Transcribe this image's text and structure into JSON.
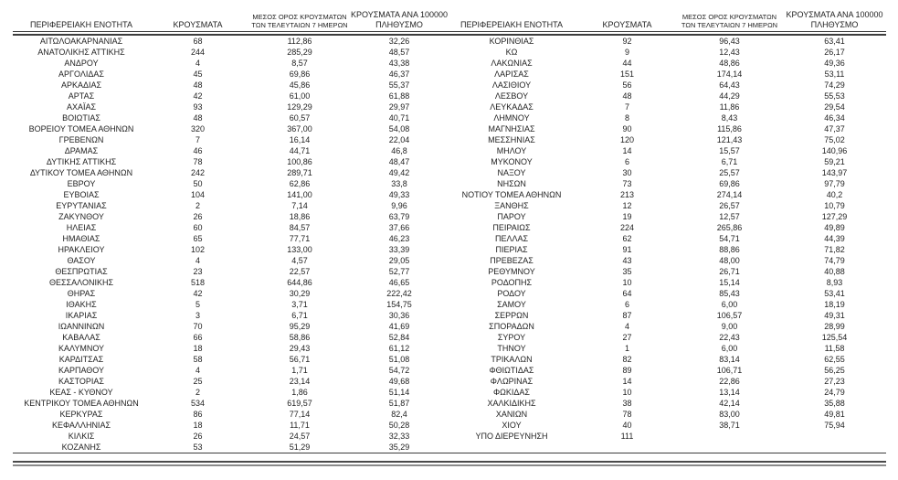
{
  "page": {
    "background_color": "#ffffff",
    "text_color": "#1f1f1f",
    "rule_color": "#3d3d3d"
  },
  "table": {
    "left": {
      "headers": {
        "region": "ΠΕΡΙΦΕΡΕΙΑΚΗ ΕΝΟΤΗΤΑ",
        "cases": "ΚΡΟΥΣΜΑΤΑ",
        "avg7_line1": "ΜΕΣΟΣ ΟΡΟΣ ΚΡΟΥΣΜΑΤΩΝ",
        "avg7_line2": "ΤΩΝ ΤΕΛΕΥΤΑΙΩΝ 7 ΗΜΕΡΩΝ",
        "per100k_line1": "ΚΡΟΥΣΜΑΤΑ ΑΝΑ 100000",
        "per100k_line2": "ΠΛΗΘΥΣΜΟ"
      },
      "rows": [
        [
          "ΑΙΤΩΛΟΑΚΑΡΝΑΝΙΑΣ",
          "68",
          "112,86",
          "32,26"
        ],
        [
          "ΑΝΑΤΟΛΙΚΗΣ ΑΤΤΙΚΗΣ",
          "244",
          "285,29",
          "48,57"
        ],
        [
          "ΑΝΔΡΟΥ",
          "4",
          "8,57",
          "43,38"
        ],
        [
          "ΑΡΓΟΛΙΔΑΣ",
          "45",
          "69,86",
          "46,37"
        ],
        [
          "ΑΡΚΑΔΙΑΣ",
          "48",
          "45,86",
          "55,37"
        ],
        [
          "ΑΡΤΑΣ",
          "42",
          "61,00",
          "61,88"
        ],
        [
          "ΑΧΑΪΑΣ",
          "93",
          "129,29",
          "29,97"
        ],
        [
          "ΒΟΙΩΤΙΑΣ",
          "48",
          "60,57",
          "40,71"
        ],
        [
          "ΒΟΡΕΙΟΥ ΤΟΜΕΑ ΑΘΗΝΩΝ",
          "320",
          "367,00",
          "54,08"
        ],
        [
          "ΓΡΕΒΕΝΩΝ",
          "7",
          "16,14",
          "22,04"
        ],
        [
          "ΔΡΑΜΑΣ",
          "46",
          "44,71",
          "46,8"
        ],
        [
          "ΔΥΤΙΚΗΣ ΑΤΤΙΚΗΣ",
          "78",
          "100,86",
          "48,47"
        ],
        [
          "ΔΥΤΙΚΟΥ ΤΟΜΕΑ ΑΘΗΝΩΝ",
          "242",
          "289,71",
          "49,42"
        ],
        [
          "ΕΒΡΟΥ",
          "50",
          "62,86",
          "33,8"
        ],
        [
          "ΕΥΒΟΙΑΣ",
          "104",
          "141,00",
          "49,33"
        ],
        [
          "ΕΥΡΥΤΑΝΙΑΣ",
          "2",
          "7,14",
          "9,96"
        ],
        [
          "ΖΑΚΥΝΘΟΥ",
          "26",
          "18,86",
          "63,79"
        ],
        [
          "ΗΛΕΙΑΣ",
          "60",
          "84,57",
          "37,66"
        ],
        [
          "ΗΜΑΘΙΑΣ",
          "65",
          "77,71",
          "46,23"
        ],
        [
          "ΗΡΑΚΛΕΙΟΥ",
          "102",
          "133,00",
          "33,39"
        ],
        [
          "ΘΑΣΟΥ",
          "4",
          "4,57",
          "29,05"
        ],
        [
          "ΘΕΣΠΡΩΤΙΑΣ",
          "23",
          "22,57",
          "52,77"
        ],
        [
          "ΘΕΣΣΑΛΟΝΙΚΗΣ",
          "518",
          "644,86",
          "46,65"
        ],
        [
          "ΘΗΡΑΣ",
          "42",
          "30,29",
          "222,42"
        ],
        [
          "ΙΘΑΚΗΣ",
          "5",
          "3,71",
          "154,75"
        ],
        [
          "ΙΚΑΡΙΑΣ",
          "3",
          "6,71",
          "30,36"
        ],
        [
          "ΙΩΑΝΝΙΝΩΝ",
          "70",
          "95,29",
          "41,69"
        ],
        [
          "ΚΑΒΑΛΑΣ",
          "66",
          "58,86",
          "52,84"
        ],
        [
          "ΚΑΛΥΜΝΟΥ",
          "18",
          "29,43",
          "61,12"
        ],
        [
          "ΚΑΡΔΙΤΣΑΣ",
          "58",
          "56,71",
          "51,08"
        ],
        [
          "ΚΑΡΠΑΘΟΥ",
          "4",
          "1,71",
          "54,72"
        ],
        [
          "ΚΑΣΤΟΡΙΑΣ",
          "25",
          "23,14",
          "49,68"
        ],
        [
          "ΚΕΑΣ - ΚΥΘΝΟΥ",
          "2",
          "1,86",
          "51,14"
        ],
        [
          "ΚΕΝΤΡΙΚΟΥ ΤΟΜΕΑ ΑΘΗΝΩΝ",
          "534",
          "619,57",
          "51,87"
        ],
        [
          "ΚΕΡΚΥΡΑΣ",
          "86",
          "77,14",
          "82,4"
        ],
        [
          "ΚΕΦΑΛΛΗΝΙΑΣ",
          "18",
          "11,71",
          "50,28"
        ],
        [
          "ΚΙΛΚΙΣ",
          "26",
          "24,57",
          "32,33"
        ],
        [
          "ΚΟΖΑΝΗΣ",
          "53",
          "51,29",
          "35,29"
        ]
      ]
    },
    "right": {
      "headers": {
        "region": "ΠΕΡΙΦΕΡΕΙΑΚΗ ΕΝΟΤΗΤΑ",
        "cases": "ΚΡΟΥΣΜΑΤΑ",
        "avg7_line1": "ΜΕΣΟΣ ΟΡΟΣ ΚΡΟΥΣΜΑΤΩΝ",
        "avg7_line2": "ΤΩΝ ΤΕΛΕΥΤΑΙΩΝ 7 ΗΜΕΡΩΝ",
        "per100k_line1": "ΚΡΟΥΣΜΑΤΑ ΑΝΑ 100000",
        "per100k_line2": "ΠΛΗΘΥΣΜΟ"
      },
      "rows": [
        [
          "ΚΟΡΙΝΘΙΑΣ",
          "92",
          "96,43",
          "63,41"
        ],
        [
          "ΚΩ",
          "9",
          "12,43",
          "26,17"
        ],
        [
          "ΛΑΚΩΝΙΑΣ",
          "44",
          "48,86",
          "49,36"
        ],
        [
          "ΛΑΡΙΣΑΣ",
          "151",
          "174,14",
          "53,11"
        ],
        [
          "ΛΑΣΙΘΙΟΥ",
          "56",
          "64,43",
          "74,29"
        ],
        [
          "ΛΕΣΒΟΥ",
          "48",
          "44,29",
          "55,53"
        ],
        [
          "ΛΕΥΚΑΔΑΣ",
          "7",
          "11,86",
          "29,54"
        ],
        [
          "ΛΗΜΝΟΥ",
          "8",
          "8,43",
          "46,34"
        ],
        [
          "ΜΑΓΝΗΣΙΑΣ",
          "90",
          "115,86",
          "47,37"
        ],
        [
          "ΜΕΣΣΗΝΙΑΣ",
          "120",
          "121,43",
          "75,02"
        ],
        [
          "ΜΗΛΟΥ",
          "14",
          "15,57",
          "140,96"
        ],
        [
          "ΜΥΚΟΝΟΥ",
          "6",
          "6,71",
          "59,21"
        ],
        [
          "ΝΑΞΟΥ",
          "30",
          "25,57",
          "143,97"
        ],
        [
          "ΝΗΣΩΝ",
          "73",
          "69,86",
          "97,79"
        ],
        [
          "ΝΟΤΙΟΥ ΤΟΜΕΑ ΑΘΗΝΩΝ",
          "213",
          "274,14",
          "40,2"
        ],
        [
          "ΞΑΝΘΗΣ",
          "12",
          "26,57",
          "10,79"
        ],
        [
          "ΠΑΡΟΥ",
          "19",
          "12,57",
          "127,29"
        ],
        [
          "ΠΕΙΡΑΙΩΣ",
          "224",
          "265,86",
          "49,89"
        ],
        [
          "ΠΕΛΛΑΣ",
          "62",
          "54,71",
          "44,39"
        ],
        [
          "ΠΙΕΡΙΑΣ",
          "91",
          "88,86",
          "71,82"
        ],
        [
          "ΠΡΕΒΕΖΑΣ",
          "43",
          "48,00",
          "74,79"
        ],
        [
          "ΡΕΘΥΜΝΟΥ",
          "35",
          "26,71",
          "40,88"
        ],
        [
          "ΡΟΔΟΠΗΣ",
          "10",
          "15,14",
          "8,93"
        ],
        [
          "ΡΟΔΟΥ",
          "64",
          "85,43",
          "53,41"
        ],
        [
          "ΣΑΜΟΥ",
          "6",
          "6,00",
          "18,19"
        ],
        [
          "ΣΕΡΡΩΝ",
          "87",
          "106,57",
          "49,31"
        ],
        [
          "ΣΠΟΡΑΔΩΝ",
          "4",
          "9,00",
          "28,99"
        ],
        [
          "ΣΥΡΟΥ",
          "27",
          "22,43",
          "125,54"
        ],
        [
          "ΤΗΝΟΥ",
          "1",
          "6,00",
          "11,58"
        ],
        [
          "ΤΡΙΚΑΛΩΝ",
          "82",
          "83,14",
          "62,55"
        ],
        [
          "ΦΘΙΩΤΙΔΑΣ",
          "89",
          "106,71",
          "56,25"
        ],
        [
          "ΦΛΩΡΙΝΑΣ",
          "14",
          "22,86",
          "27,23"
        ],
        [
          "ΦΩΚΙΔΑΣ",
          "10",
          "13,14",
          "24,79"
        ],
        [
          "ΧΑΛΚΙΔΙΚΗΣ",
          "38",
          "42,14",
          "35,88"
        ],
        [
          "ΧΑΝΙΩΝ",
          "78",
          "83,00",
          "49,81"
        ],
        [
          "ΧΙΟΥ",
          "40",
          "38,71",
          "75,94"
        ],
        [
          "ΥΠΟ ΔΙΕΡΕΥΝΗΣΗ",
          "111",
          "",
          ""
        ]
      ]
    }
  }
}
